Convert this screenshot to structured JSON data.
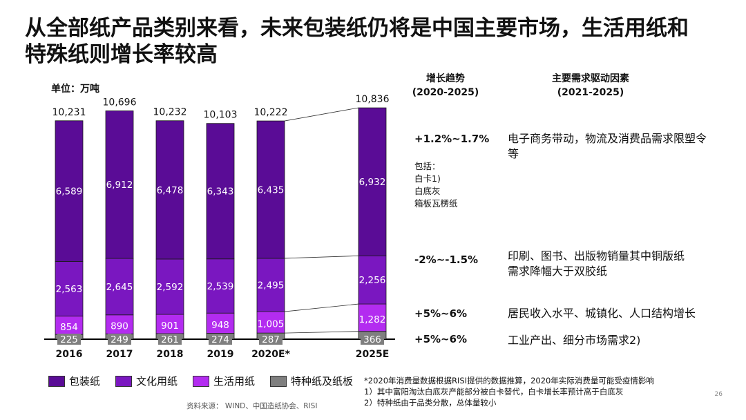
{
  "title": "从全部纸产品类别来看，未来包装纸仍将是中国主要市场，生活用纸和特殊纸则增长率较高",
  "unit_label": "单位：万吨",
  "chart_data": {
    "type": "bar",
    "stacked": true,
    "categories": [
      "2016",
      "2017",
      "2018",
      "2019",
      "2020E*",
      "2025E"
    ],
    "totals": [
      10231,
      10696,
      10232,
      10103,
      10222,
      10836
    ],
    "totals_labels": [
      "10,231",
      "10,696",
      "10,232",
      "10,103",
      "10,222",
      "10,836"
    ],
    "series": [
      {
        "name": "特种纸及纸板",
        "color": "#7f7f7f",
        "values": [
          225,
          249,
          261,
          274,
          287,
          366
        ],
        "labels": [
          "225",
          "249",
          "261",
          "274",
          "287",
          "366"
        ]
      },
      {
        "name": "生活用纸",
        "color": "#b32cf0",
        "values": [
          854,
          890,
          901,
          948,
          1005,
          1282
        ],
        "labels": [
          "854",
          "890",
          "901",
          "948",
          "1,005",
          "1,282"
        ]
      },
      {
        "name": "文化用纸",
        "color": "#7a17c0",
        "values": [
          2563,
          2645,
          2592,
          2539,
          2495,
          2256
        ],
        "labels": [
          "2,563",
          "2,645",
          "2,592",
          "2,539",
          "2,495",
          "2,256"
        ]
      },
      {
        "name": "包装纸",
        "color": "#5a0c96",
        "values": [
          6589,
          6912,
          6478,
          6343,
          6435,
          6932
        ],
        "labels": [
          "6,589",
          "6,912",
          "6,478",
          "6,343",
          "6,435",
          "6,932"
        ]
      }
    ],
    "ylim": [
      0,
      11000
    ],
    "legend_order": [
      "包装纸",
      "文化用纸",
      "生活用纸",
      "特种纸及纸板"
    ],
    "legend_colors": [
      "#5a0c96",
      "#7a17c0",
      "#b32cf0",
      "#7f7f7f"
    ]
  },
  "columns": {
    "trend_header": "增长趋势",
    "trend_period": "(2020-2025)",
    "driver_header": "主要需求驱动因素",
    "driver_period": "(2021-2025)"
  },
  "rows": [
    {
      "trend": "+1.2%~1.7%",
      "driver": "电子商务带动，物流及消费品需求限塑令等"
    },
    {
      "trend": "-2%~-1.5%",
      "driver": "印刷、图书、出版物销量其中铜版纸需求降幅大于双胶纸"
    },
    {
      "trend": "+5%~6%",
      "driver": "居民收入水平、城镇化、人口结构增长"
    },
    {
      "trend": "+5%~6%",
      "driver": "工业产出、细分市场需求2)"
    }
  ],
  "include_label": "包括：",
  "include_items": [
    "白卡1)",
    "白底灰",
    "箱板瓦楞纸"
  ],
  "notes": [
    "*2020年消费量数据根据RISI提供的数据推算，2020年实际消费量可能受疫情影响",
    "1）其中富阳淘汰白底灰产能部分被白卡替代，白卡增长率预计高于白底灰",
    "2）特种纸由于品类分散，总体量较小"
  ],
  "source": "资料来源： WIND、中国造纸协会、RISI",
  "page_number": "26"
}
